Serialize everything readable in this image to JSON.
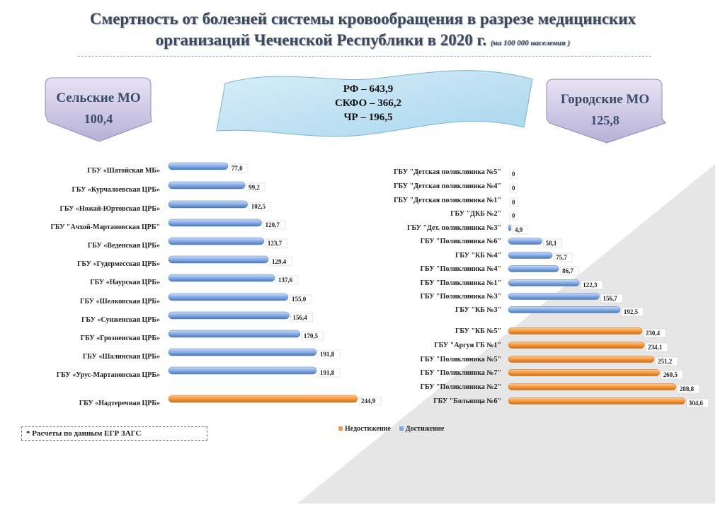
{
  "title": {
    "line1": "Смертность от болезней системы кровообращения в разрезе медицинских",
    "line2": "организаций Чеченской Республики в 2020 г.",
    "note": "(на 100 000 населения )"
  },
  "rural": {
    "label": "Сельские МО",
    "value": "100,4"
  },
  "urban": {
    "label": "Городские МО",
    "value": "125,8"
  },
  "reference": {
    "rf": "РФ – 643,9",
    "skfo": "СКФО – 366,2",
    "chr": "ЧР – 196,5"
  },
  "footnote": "* Расчеты по данным ЕГР ЗАГС",
  "colors": {
    "achieved": "#7fa7e0",
    "not_achieved": "#f59a3e"
  },
  "chart_data": [
    {
      "type": "bar",
      "orientation": "horizontal",
      "title": "Сельские МО",
      "categories": [
        "ГБУ «Шатойская МБ»",
        "ГБУ «Курчалоевская ЦРБ»",
        "ГБУ «Ножай-Юртовская ЦРБ»",
        "ГБУ \"Ачхой-Мартановская ЦРБ\"",
        "ГБУ «Веденская ЦРБ»",
        "ГБУ «Гудермесская ЦРБ»",
        "ГБУ «Наурская ЦРБ»",
        "ГБУ «Шелковская ЦРБ»",
        "ГБУ «Сунженская ЦРБ»",
        "ГБУ «Грозненская ЦРБ»",
        "ГБУ «Шалинская ЦРБ»",
        "ГБУ «Урус-Мартановская ЦРБ»",
        "ГБУ «Надтеречная ЦРБ»"
      ],
      "values": [
        77.0,
        99.2,
        102.5,
        120.7,
        123.7,
        129.4,
        137.6,
        155.0,
        156.4,
        170.5,
        191.8,
        191.8,
        244.9
      ],
      "labels": [
        "77,0",
        "99,2",
        "102,5",
        "120,7",
        "123,7",
        "129,4",
        "137,6",
        "155,0",
        "156,4",
        "170,5",
        "191,8",
        "191,8",
        "244,9"
      ],
      "series_of": [
        "Достижение",
        "Достижение",
        "Достижение",
        "Достижение",
        "Достижение",
        "Достижение",
        "Достижение",
        "Достижение",
        "Достижение",
        "Достижение",
        "Достижение",
        "Достижение",
        "Недостижение"
      ]
    },
    {
      "type": "bar",
      "orientation": "horizontal",
      "title": "Городские МО",
      "categories": [
        "ГБУ \"Детская поликлиника №5\"",
        "ГБУ \"Детская поликлиника №4\"",
        "ГБУ \"Детская поликлиника №1\"",
        "ГБУ \"ДКБ №2\"",
        "ГБУ \"Дет. поликлиника №3\"",
        "ГБУ \"Поликлиника №6\"",
        "ГБУ \"КБ №4\"",
        "ГБУ \"Поликлиника №4\"",
        "ГБУ \"Поликлиника №1\"",
        "ГБУ \"Поликлиника №3\"",
        "ГБУ \"КБ №3\"",
        "ГБУ \"КБ №5\"",
        "ГБУ \"Аргун ГБ №1\"",
        "ГБУ \"Поликлиника №5\"",
        "ГБУ \"Поликлиника №7\"",
        "ГБУ \"Поликлиника №2\"",
        "ГБУ \"Больница  №6\""
      ],
      "values": [
        0,
        0,
        0,
        0,
        4.9,
        58.1,
        75.7,
        86.7,
        122.3,
        156.7,
        192.5,
        230.4,
        234.1,
        251.2,
        260.5,
        288.8,
        304.6
      ],
      "labels": [
        "0",
        "0",
        "0",
        "0",
        "4,9",
        "58,1",
        "75,7",
        "86,7",
        "122,3",
        "156,7",
        "192,5",
        "230,4",
        "234,1",
        "251,2",
        "260,5",
        "288,8",
        "304,6"
      ],
      "series_of": [
        "Достижение",
        "Достижение",
        "Достижение",
        "Достижение",
        "Достижение",
        "Достижение",
        "Достижение",
        "Достижение",
        "Достижение",
        "Достижение",
        "Достижение",
        "Недостижение",
        "Недостижение",
        "Недостижение",
        "Недостижение",
        "Недостижение",
        "Недостижение"
      ]
    }
  ],
  "legend": [
    {
      "name": "Недостижение"
    },
    {
      "name": "Достижение"
    }
  ]
}
